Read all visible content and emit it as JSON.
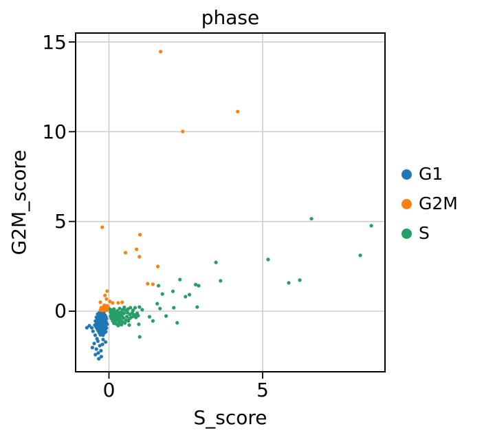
{
  "chart_data": {
    "type": "scatter",
    "title": "phase",
    "xlabel": "S_score",
    "ylabel": "G2M_score",
    "xlim": [
      -1.14,
      8.98
    ],
    "ylim": [
      -3.39,
      15.5
    ],
    "xticks": [
      0,
      5
    ],
    "yticks": [
      0,
      5,
      10,
      15
    ],
    "xtick_labels": [
      "0",
      "5"
    ],
    "ytick_labels": [
      "0",
      "5",
      "10",
      "15"
    ],
    "grid": true,
    "grid_color": "#cdcdcd",
    "axis_color": "#000000",
    "background_color": "#ffffff",
    "point_radius_px": 2.6,
    "legend_position": "right of axes, no frame",
    "series": [
      {
        "name": "G1",
        "color": "#1f77b4",
        "points": [
          [
            -0.31,
            -0.08
          ],
          [
            -0.24,
            -0.12
          ],
          [
            -0.17,
            -0.1
          ],
          [
            -0.37,
            -0.16
          ],
          [
            -0.28,
            -0.19
          ],
          [
            -0.21,
            -0.17
          ],
          [
            -0.13,
            -0.22
          ],
          [
            -0.34,
            -0.26
          ],
          [
            -0.26,
            -0.29
          ],
          [
            -0.18,
            -0.27
          ],
          [
            -0.1,
            -0.31
          ],
          [
            -0.41,
            -0.34
          ],
          [
            -0.31,
            -0.36
          ],
          [
            -0.23,
            -0.39
          ],
          [
            -0.15,
            -0.37
          ],
          [
            -0.08,
            -0.42
          ],
          [
            -0.38,
            -0.45
          ],
          [
            -0.29,
            -0.47
          ],
          [
            -0.21,
            -0.5
          ],
          [
            -0.13,
            -0.47
          ],
          [
            -0.44,
            -0.55
          ],
          [
            -0.35,
            -0.57
          ],
          [
            -0.26,
            -0.59
          ],
          [
            -0.18,
            -0.56
          ],
          [
            -0.09,
            -0.61
          ],
          [
            -0.4,
            -0.66
          ],
          [
            -0.31,
            -0.68
          ],
          [
            -0.23,
            -0.7
          ],
          [
            -0.15,
            -0.67
          ],
          [
            -0.06,
            -0.72
          ],
          [
            -0.46,
            -0.77
          ],
          [
            -0.37,
            -0.79
          ],
          [
            -0.28,
            -0.81
          ],
          [
            -0.2,
            -0.78
          ],
          [
            -0.11,
            -0.83
          ],
          [
            -0.42,
            -0.88
          ],
          [
            -0.33,
            -0.9
          ],
          [
            -0.25,
            -0.92
          ],
          [
            -0.16,
            -0.89
          ],
          [
            -0.08,
            -0.94
          ],
          [
            -0.38,
            -0.99
          ],
          [
            -0.29,
            -1.01
          ],
          [
            -0.21,
            -1.03
          ],
          [
            -0.13,
            -1.0
          ],
          [
            -0.35,
            -1.1
          ],
          [
            -0.26,
            -1.12
          ],
          [
            -0.18,
            -1.09
          ],
          [
            -0.1,
            -1.14
          ],
          [
            -0.31,
            -1.21
          ],
          [
            -0.23,
            -1.23
          ],
          [
            -0.14,
            -1.2
          ],
          [
            -0.28,
            -1.32
          ],
          [
            -0.19,
            -1.34
          ],
          [
            -0.24,
            -0.45
          ],
          [
            -0.27,
            -0.63
          ],
          [
            -0.22,
            -0.85
          ],
          [
            -0.3,
            -0.55
          ],
          [
            -0.25,
            -0.74
          ],
          [
            -0.19,
            -0.64
          ],
          [
            -0.23,
            -0.96
          ],
          [
            -0.64,
            -0.81
          ],
          [
            -0.72,
            -0.92
          ],
          [
            -0.45,
            -1.34
          ],
          [
            -0.39,
            -1.53
          ],
          [
            -0.19,
            -1.58
          ],
          [
            -0.36,
            -1.67
          ],
          [
            -0.48,
            -1.8
          ],
          [
            -0.21,
            -1.85
          ],
          [
            -0.3,
            -1.92
          ],
          [
            -0.54,
            -2.03
          ],
          [
            -0.41,
            -2.11
          ],
          [
            -0.26,
            -2.2
          ],
          [
            -0.35,
            -2.33
          ],
          [
            -0.44,
            -2.42
          ],
          [
            -0.25,
            -2.53
          ],
          [
            -0.33,
            -2.65
          ],
          [
            -0.11,
            -1.72
          ],
          [
            -0.52,
            -1.12
          ],
          [
            -0.56,
            -0.93
          ]
        ]
      },
      {
        "name": "G2M",
        "color": "#ff7f0e",
        "points": [
          [
            1.68,
            14.46
          ],
          [
            4.19,
            11.12
          ],
          [
            2.4,
            10.01
          ],
          [
            -0.22,
            4.68
          ],
          [
            1.01,
            4.26
          ],
          [
            0.9,
            3.45
          ],
          [
            0.54,
            3.26
          ],
          [
            0.99,
            3.03
          ],
          [
            1.59,
            2.49
          ],
          [
            1.26,
            1.53
          ],
          [
            1.43,
            1.5
          ],
          [
            -0.06,
            1.12
          ],
          [
            -0.13,
            0.88
          ],
          [
            -0.28,
            0.5
          ],
          [
            0.03,
            0.54
          ],
          [
            0.12,
            0.46
          ],
          [
            0.3,
            0.46
          ],
          [
            0.43,
            0.5
          ],
          [
            -0.08,
            0.68
          ],
          [
            -0.28,
            0.06
          ],
          [
            -0.22,
            0.12
          ],
          [
            -0.17,
            0.25
          ],
          [
            -0.13,
            0.08
          ],
          [
            -0.1,
            0.18
          ],
          [
            -0.06,
            0.3
          ],
          [
            -0.04,
            0.1
          ],
          [
            -0.2,
            0.04
          ],
          [
            -0.25,
            0.2
          ],
          [
            -0.08,
            0.04
          ],
          [
            -0.15,
            0.33
          ],
          [
            -0.02,
            0.22
          ],
          [
            -0.18,
            0.15
          ],
          [
            -0.11,
            0.28
          ]
        ]
      },
      {
        "name": "S",
        "color": "#279e68",
        "points": [
          [
            8.54,
            4.76
          ],
          [
            8.18,
            3.11
          ],
          [
            6.59,
            5.15
          ],
          [
            6.21,
            1.73
          ],
          [
            5.85,
            1.58
          ],
          [
            5.18,
            2.88
          ],
          [
            3.48,
            2.72
          ],
          [
            3.63,
            1.69
          ],
          [
            2.82,
            1.48
          ],
          [
            2.92,
            1.42
          ],
          [
            2.31,
            1.76
          ],
          [
            2.49,
            0.81
          ],
          [
            2.62,
            0.92
          ],
          [
            2.08,
            1.11
          ],
          [
            1.74,
            0.96
          ],
          [
            1.61,
            1.42
          ],
          [
            1.57,
            0.42
          ],
          [
            1.66,
            0.15
          ],
          [
            2.11,
            0.19
          ],
          [
            2.87,
            0.23
          ],
          [
            0.99,
            0.23
          ],
          [
            1.08,
            0.08
          ],
          [
            1.32,
            -0.31
          ],
          [
            1.43,
            -0.54
          ],
          [
            1.86,
            -0.27
          ],
          [
            2.22,
            -0.65
          ],
          [
            0.97,
            -0.73
          ],
          [
            0.66,
            -0.77
          ],
          [
            1.0,
            -1.43
          ],
          [
            0.04,
            0.1
          ],
          [
            0.1,
            0.05
          ],
          [
            0.16,
            0.12
          ],
          [
            0.05,
            -0.05
          ],
          [
            0.12,
            -0.08
          ],
          [
            0.2,
            -0.03
          ],
          [
            0.27,
            0.02
          ],
          [
            0.08,
            -0.16
          ],
          [
            0.15,
            -0.19
          ],
          [
            0.23,
            -0.13
          ],
          [
            0.31,
            -0.09
          ],
          [
            0.05,
            -0.28
          ],
          [
            0.13,
            -0.31
          ],
          [
            0.21,
            -0.26
          ],
          [
            0.29,
            -0.22
          ],
          [
            0.38,
            -0.15
          ],
          [
            0.08,
            -0.41
          ],
          [
            0.17,
            -0.44
          ],
          [
            0.25,
            -0.38
          ],
          [
            0.33,
            -0.33
          ],
          [
            0.42,
            -0.27
          ],
          [
            0.12,
            -0.54
          ],
          [
            0.2,
            -0.57
          ],
          [
            0.28,
            -0.51
          ],
          [
            0.37,
            -0.46
          ],
          [
            0.47,
            -0.38
          ],
          [
            0.16,
            -0.68
          ],
          [
            0.24,
            -0.71
          ],
          [
            0.34,
            -0.64
          ],
          [
            0.44,
            -0.58
          ],
          [
            0.55,
            -0.49
          ],
          [
            0.3,
            -0.8
          ],
          [
            0.41,
            -0.75
          ],
          [
            0.52,
            -0.66
          ],
          [
            0.63,
            -0.55
          ],
          [
            0.58,
            -0.3
          ],
          [
            0.66,
            -0.42
          ],
          [
            0.72,
            -0.35
          ],
          [
            0.79,
            -0.28
          ],
          [
            0.68,
            -0.18
          ],
          [
            0.76,
            -0.1
          ],
          [
            0.85,
            -0.2
          ],
          [
            0.92,
            -0.12
          ],
          [
            0.6,
            -0.08
          ],
          [
            0.49,
            -0.12
          ],
          [
            0.55,
            0.05
          ],
          [
            0.62,
            0.12
          ],
          [
            0.7,
            0.2
          ],
          [
            0.85,
            0.19
          ],
          [
            0.45,
            0.08
          ],
          [
            0.35,
            0.15
          ],
          [
            0.5,
            0.22
          ],
          [
            0.78,
            0.05
          ],
          [
            0.88,
            -0.35
          ],
          [
            0.95,
            -0.25
          ],
          [
            0.07,
            0.02
          ],
          [
            0.18,
            -0.48
          ],
          [
            0.4,
            -0.05
          ]
        ]
      }
    ]
  }
}
